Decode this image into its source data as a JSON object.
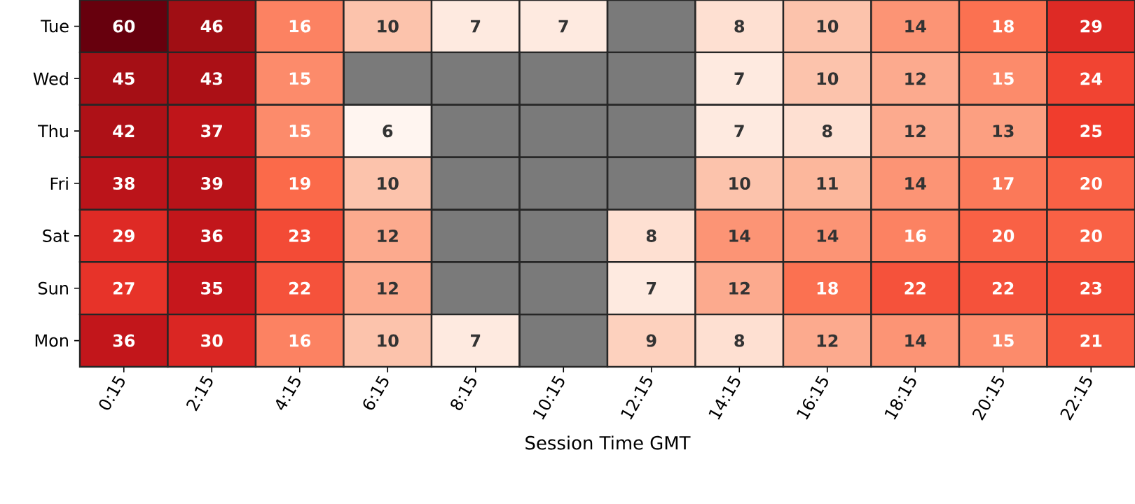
{
  "chart_data": {
    "type": "heatmap",
    "xlabel": "Session Time GMT",
    "categories": [
      "0:15",
      "2:15",
      "4:15",
      "6:15",
      "8:15",
      "10:15",
      "12:15",
      "14:15",
      "16:15",
      "18:15",
      "20:15",
      "22:15"
    ],
    "y_categories": [
      "Tue",
      "Wed",
      "Thu",
      "Fri",
      "Sat",
      "Sun",
      "Mon"
    ],
    "cells": [
      [
        60,
        46,
        16,
        10,
        7,
        7,
        null,
        8,
        10,
        14,
        18,
        29
      ],
      [
        45,
        43,
        15,
        null,
        null,
        null,
        null,
        7,
        10,
        12,
        15,
        24
      ],
      [
        42,
        37,
        15,
        6,
        null,
        null,
        null,
        7,
        8,
        12,
        13,
        25
      ],
      [
        38,
        39,
        19,
        10,
        null,
        null,
        null,
        10,
        11,
        14,
        17,
        20
      ],
      [
        29,
        36,
        23,
        12,
        null,
        null,
        8,
        14,
        14,
        16,
        20,
        20
      ],
      [
        27,
        35,
        22,
        12,
        null,
        null,
        7,
        12,
        18,
        22,
        22,
        23
      ],
      [
        36,
        30,
        16,
        10,
        7,
        null,
        9,
        8,
        12,
        14,
        15,
        21
      ]
    ],
    "data_labels": true
  }
}
